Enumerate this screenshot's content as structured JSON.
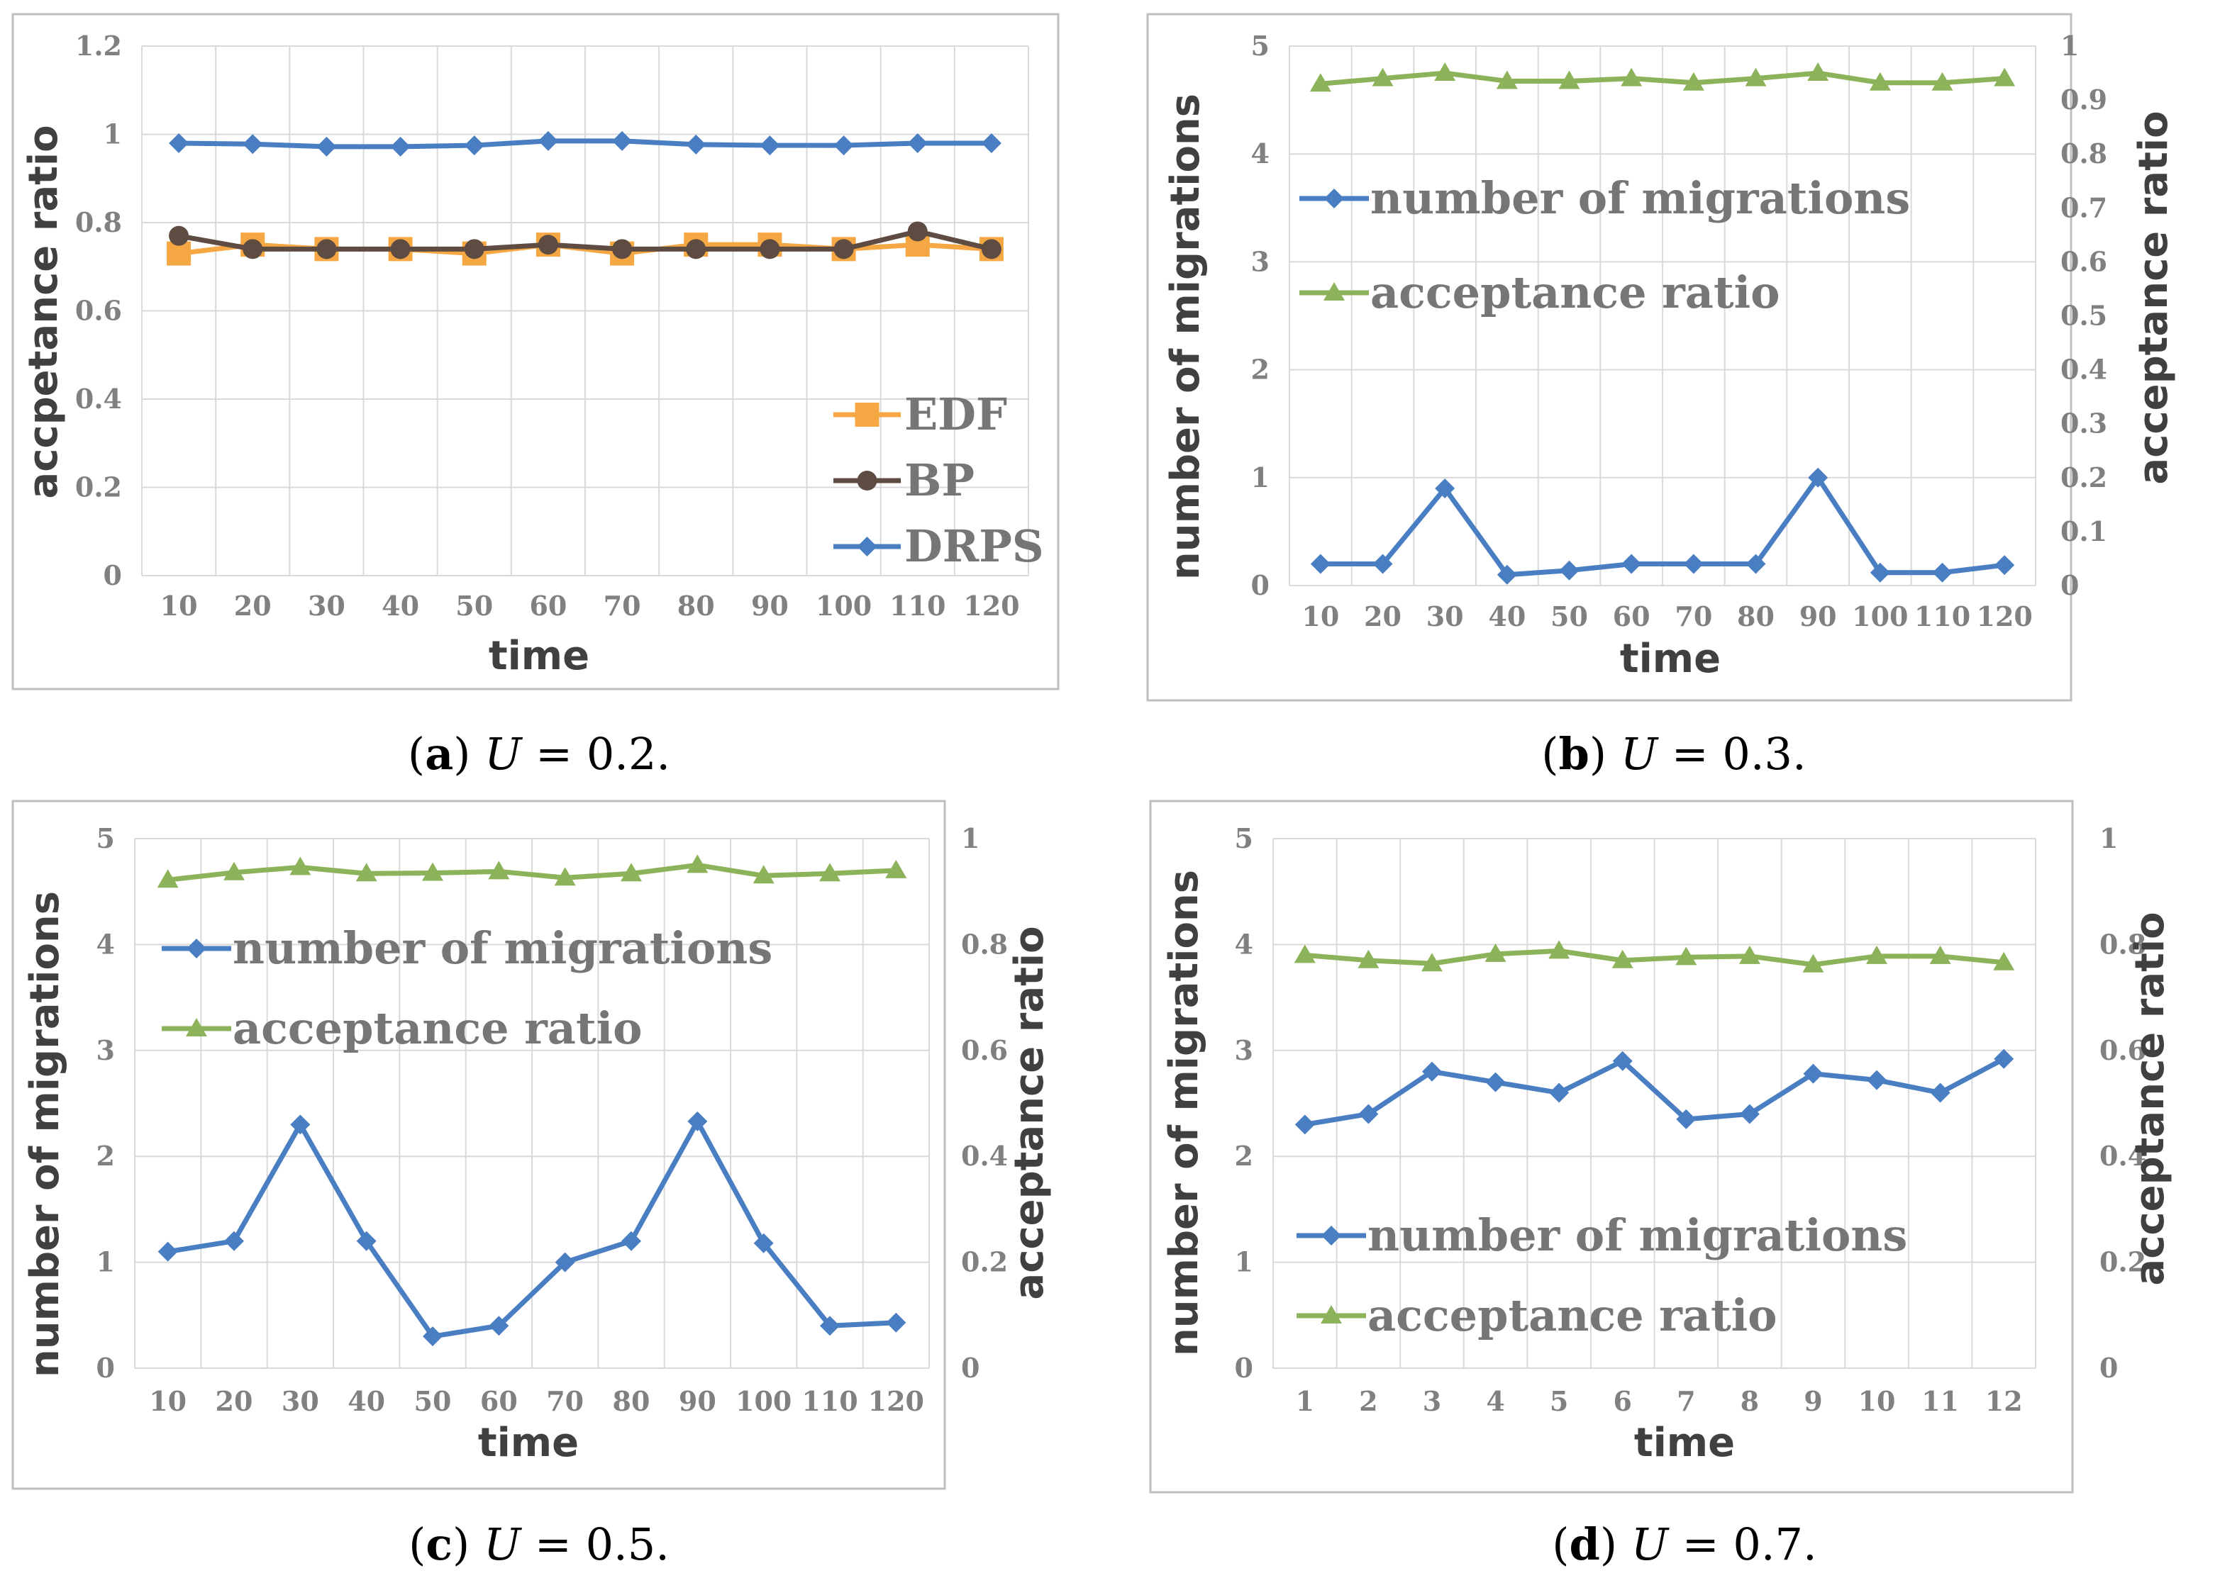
{
  "chart_data": [
    {
      "id": "a",
      "type": "line",
      "caption": {
        "letter": "a",
        "variable": "U",
        "equals": "=",
        "value": "0.2."
      },
      "xlabel": "time",
      "ylabel": "accpetance ratio",
      "categories": [
        "10",
        "20",
        "30",
        "40",
        "50",
        "60",
        "70",
        "80",
        "90",
        "100",
        "110",
        "120"
      ],
      "ylim": [
        0,
        1.2
      ],
      "yticks": [
        "0",
        "0.2",
        "0.4",
        "0.6",
        "0.8",
        "1",
        "1.2"
      ],
      "legend_position": "bottom-right",
      "grid": true,
      "series": [
        {
          "name": "EDF",
          "color": "#F4A742",
          "marker": "square",
          "values": [
            0.73,
            0.75,
            0.74,
            0.74,
            0.73,
            0.75,
            0.73,
            0.75,
            0.75,
            0.74,
            0.75,
            0.74
          ]
        },
        {
          "name": "BP",
          "color": "#5E4B42",
          "marker": "circle",
          "values": [
            0.77,
            0.74,
            0.74,
            0.74,
            0.74,
            0.75,
            0.74,
            0.74,
            0.74,
            0.74,
            0.78,
            0.74
          ]
        },
        {
          "name": "DRPS",
          "color": "#4A7EC2",
          "marker": "diamond",
          "values": [
            0.98,
            0.978,
            0.972,
            0.972,
            0.975,
            0.985,
            0.985,
            0.977,
            0.975,
            0.975,
            0.98,
            0.98
          ]
        }
      ]
    },
    {
      "id": "b",
      "type": "line",
      "caption": {
        "letter": "b",
        "variable": "U",
        "equals": "=",
        "value": "0.3."
      },
      "xlabel": "time",
      "ylabel": "number of migrations",
      "y2label": "acceptance ratio",
      "categories": [
        "10",
        "20",
        "30",
        "40",
        "50",
        "60",
        "70",
        "80",
        "90",
        "100",
        "110",
        "120"
      ],
      "ylim": [
        0,
        5
      ],
      "yticks": [
        "0",
        "1",
        "2",
        "3",
        "4",
        "5"
      ],
      "y2lim": [
        0,
        1
      ],
      "y2ticks": [
        "0",
        "0.1",
        "0.2",
        "0.3",
        "0.4",
        "0.5",
        "0.6",
        "0.7",
        "0.8",
        "0.9",
        "1"
      ],
      "legend_position": "top-left",
      "grid": true,
      "series": [
        {
          "name": "number of migrations",
          "axis": "left",
          "color": "#4A7EC2",
          "marker": "diamond",
          "values": [
            0.2,
            0.2,
            0.9,
            0.1,
            0.14,
            0.2,
            0.2,
            0.2,
            1.0,
            0.12,
            0.12,
            0.19
          ]
        },
        {
          "name": "acceptance ratio",
          "axis": "right",
          "color": "#8DB35A",
          "marker": "triangle",
          "values": [
            0.93,
            0.94,
            0.95,
            0.935,
            0.935,
            0.94,
            0.932,
            0.94,
            0.95,
            0.932,
            0.932,
            0.94
          ]
        }
      ]
    },
    {
      "id": "c",
      "type": "line",
      "caption": {
        "letter": "c",
        "variable": "U",
        "equals": "=",
        "value": "0.5."
      },
      "xlabel": "time",
      "ylabel": "number of migrations",
      "y2label": "acceptance ratio",
      "categories": [
        "10",
        "20",
        "30",
        "40",
        "50",
        "60",
        "70",
        "80",
        "90",
        "100",
        "110",
        "120"
      ],
      "ylim": [
        0,
        5
      ],
      "yticks": [
        "0",
        "1",
        "2",
        "3",
        "4",
        "5"
      ],
      "y2lim": [
        0,
        1
      ],
      "y2ticks": [
        "0",
        "0.2",
        "0.4",
        "0.6",
        "0.8",
        "1"
      ],
      "legend_position": "top-left",
      "grid": true,
      "series": [
        {
          "name": "number of migrations",
          "axis": "left",
          "color": "#4A7EC2",
          "marker": "diamond",
          "values": [
            1.1,
            1.2,
            2.3,
            1.2,
            0.3,
            0.4,
            1.0,
            1.2,
            2.33,
            1.18,
            0.4,
            0.43
          ]
        },
        {
          "name": "acceptance ratio",
          "axis": "right",
          "color": "#8DB35A",
          "marker": "triangle",
          "values": [
            0.922,
            0.936,
            0.946,
            0.934,
            0.935,
            0.938,
            0.926,
            0.934,
            0.95,
            0.93,
            0.934,
            0.94
          ]
        }
      ]
    },
    {
      "id": "d",
      "type": "line",
      "caption": {
        "letter": "d",
        "variable": "U",
        "equals": "=",
        "value": "0.7."
      },
      "xlabel": "time",
      "ylabel": "number of migrations",
      "y2label": "acceptance ratio",
      "categories": [
        "1",
        "2",
        "3",
        "4",
        "5",
        "6",
        "7",
        "8",
        "9",
        "10",
        "11",
        "12"
      ],
      "ylim": [
        0,
        5
      ],
      "yticks": [
        "0",
        "1",
        "2",
        "3",
        "4",
        "5"
      ],
      "y2lim": [
        0,
        1
      ],
      "y2ticks": [
        "0",
        "0.2",
        "0.4",
        "0.6",
        "0.8",
        "1"
      ],
      "legend_position": "bottom-left",
      "grid": true,
      "series": [
        {
          "name": "number of migrations",
          "axis": "left",
          "color": "#4A7EC2",
          "marker": "diamond",
          "values": [
            2.3,
            2.4,
            2.8,
            2.7,
            2.6,
            2.9,
            2.35,
            2.4,
            2.78,
            2.72,
            2.6,
            2.92
          ]
        },
        {
          "name": "acceptance ratio",
          "axis": "right",
          "color": "#8DB35A",
          "marker": "triangle",
          "values": [
            0.78,
            0.77,
            0.764,
            0.782,
            0.788,
            0.77,
            0.776,
            0.778,
            0.762,
            0.778,
            0.778,
            0.766
          ]
        }
      ]
    }
  ]
}
